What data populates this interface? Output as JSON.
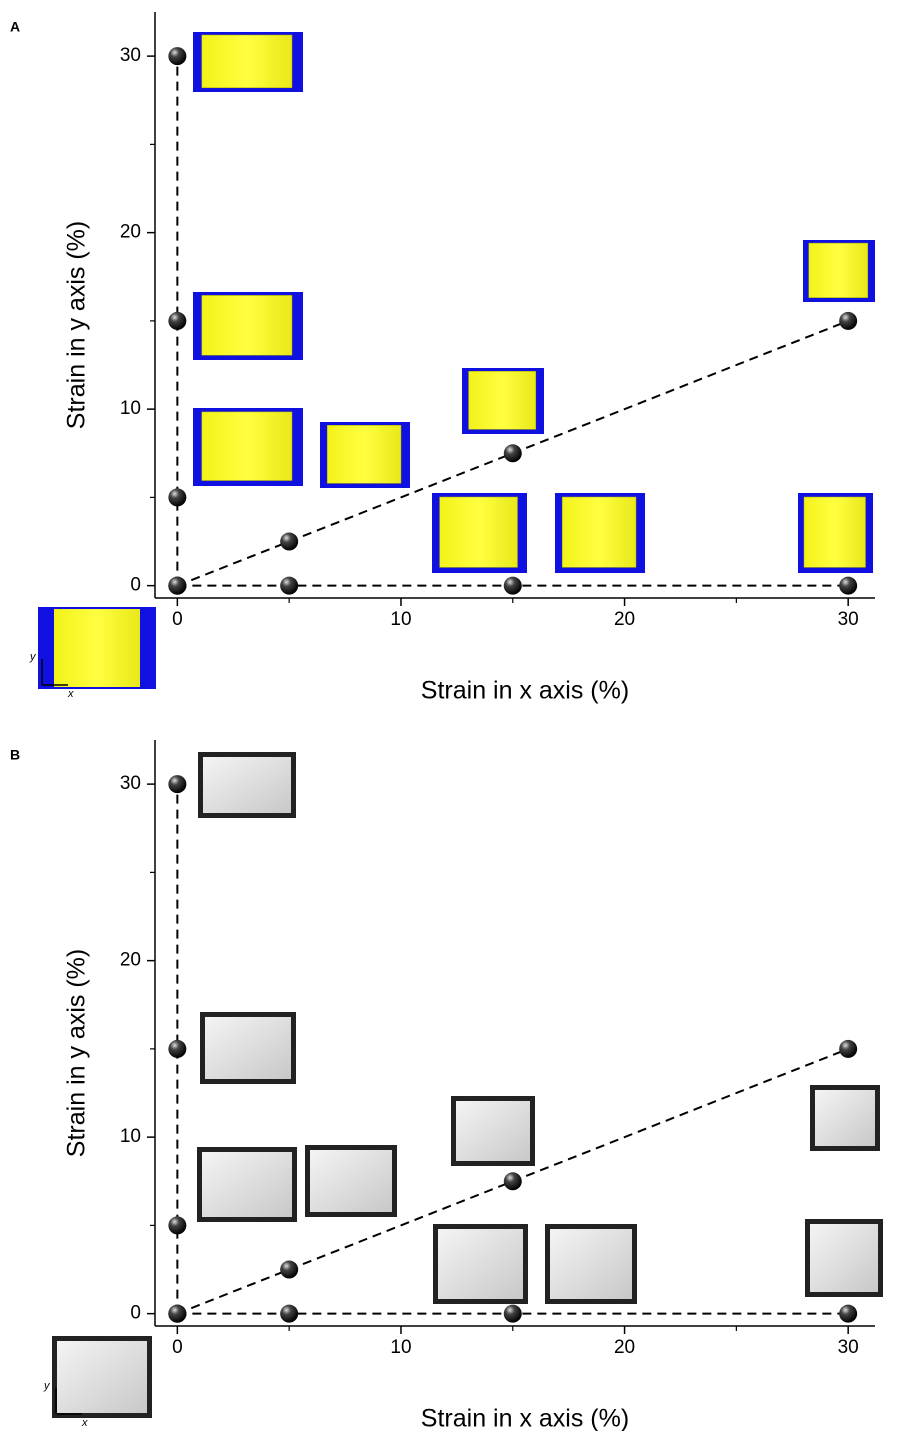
{
  "chart_data": [
    {
      "type": "scatter",
      "panel": "A",
      "xlabel": "Strain in x axis (%)",
      "ylabel": "Strain in y axis (%)",
      "series": [
        {
          "color": "#000000",
          "x": [
            0,
            5,
            15,
            30
          ],
          "y": [
            0,
            0,
            0,
            0
          ]
        },
        {
          "color": "#000000",
          "x": [
            0,
            0,
            0,
            0
          ],
          "y": [
            0,
            5,
            15,
            30
          ]
        },
        {
          "color": "#000000",
          "x": [
            0,
            5,
            15,
            30
          ],
          "y": [
            0,
            2.5,
            7.5,
            15
          ]
        }
      ],
      "xlim": [
        -1,
        31.2
      ],
      "ylim": [
        -0.7,
        32.5
      ],
      "xticks": [
        0,
        10,
        20,
        30
      ],
      "yticks": [
        0,
        10,
        20,
        30
      ],
      "xminor": [
        5,
        15,
        25
      ],
      "yminor": [
        5,
        15,
        25
      ],
      "inset_x": "x",
      "inset_y": "y"
    },
    {
      "type": "scatter",
      "panel": "B",
      "xlabel": "Strain in x axis (%)",
      "ylabel": "Strain in y axis (%)",
      "series": [
        {
          "color": "#000000",
          "x": [
            0,
            5,
            15,
            30
          ],
          "y": [
            0,
            0,
            0,
            0
          ]
        },
        {
          "color": "#000000",
          "x": [
            0,
            0,
            0,
            0
          ],
          "y": [
            0,
            5,
            15,
            30
          ]
        },
        {
          "color": "#000000",
          "x": [
            0,
            5,
            15,
            30
          ],
          "y": [
            0,
            2.5,
            7.5,
            15
          ]
        }
      ],
      "xlim": [
        -1,
        31.2
      ],
      "ylim": [
        -0.7,
        32.5
      ],
      "xticks": [
        0,
        10,
        20,
        30
      ],
      "yticks": [
        0,
        10,
        20,
        30
      ],
      "xminor": [
        5,
        15,
        25
      ],
      "yminor": [
        5,
        15,
        25
      ],
      "inset_x": "x",
      "inset_y": "y"
    }
  ]
}
